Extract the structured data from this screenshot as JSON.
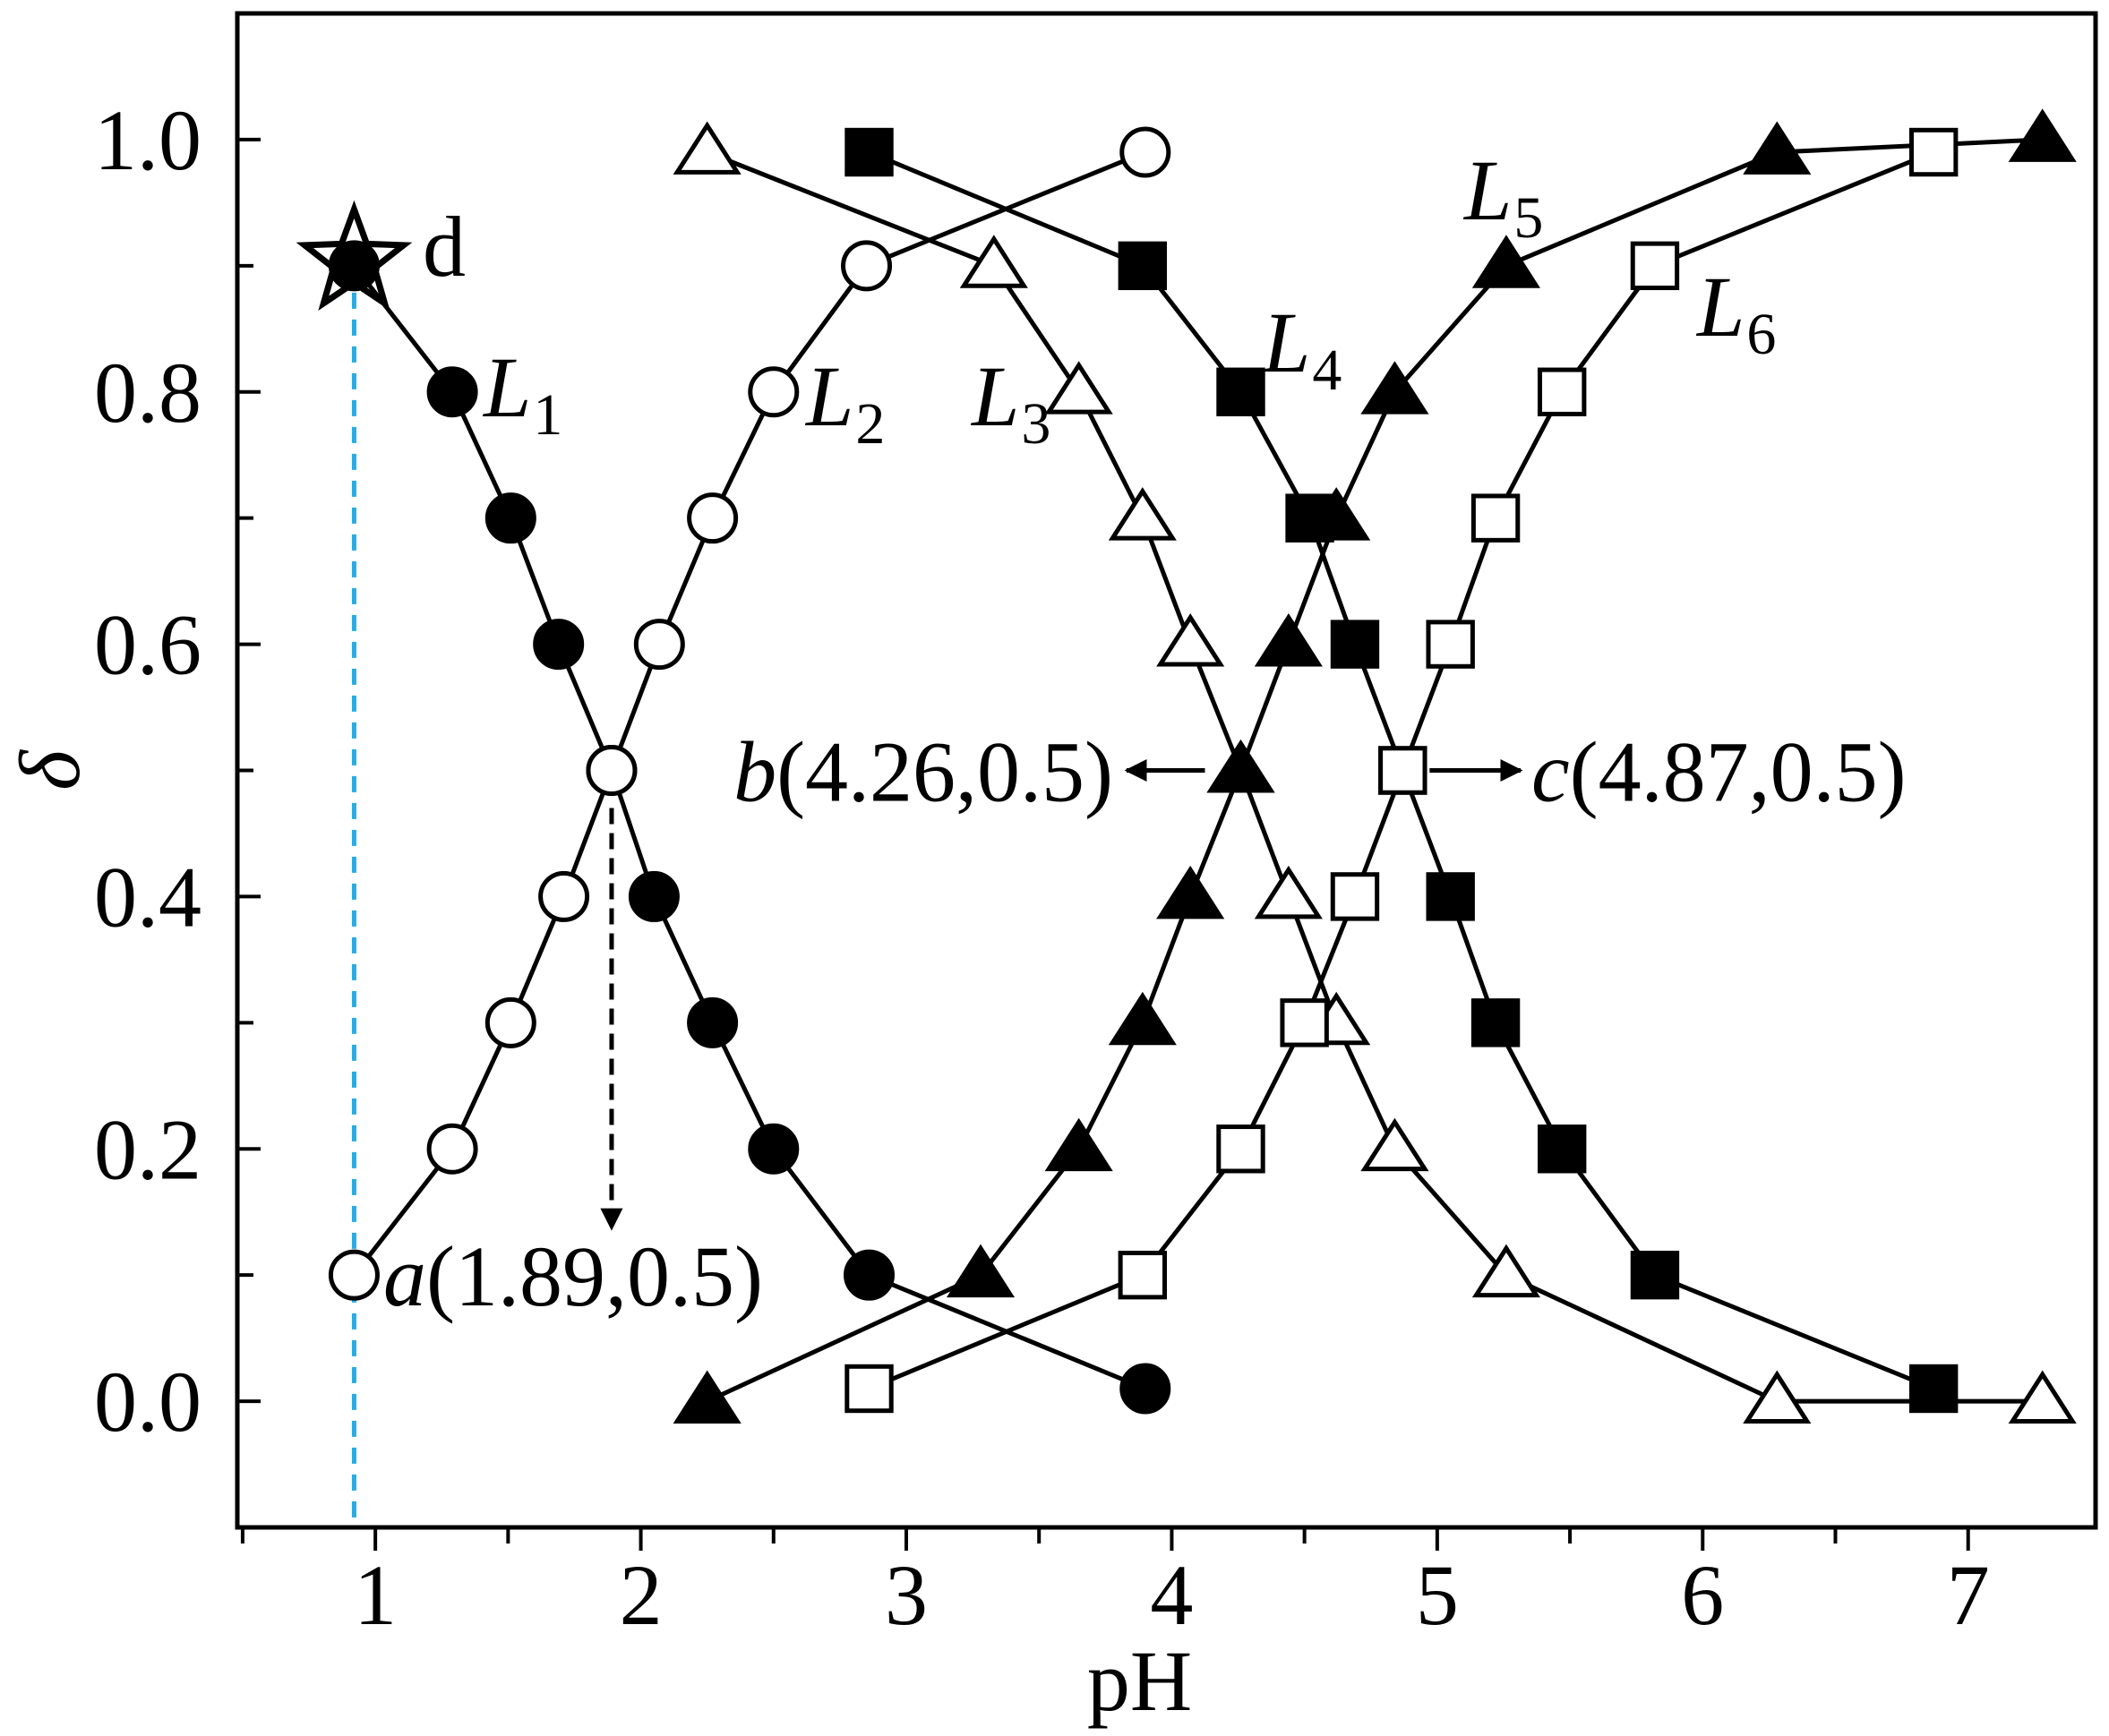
{
  "chart_data": {
    "type": "line",
    "xlabel": "pH",
    "ylabel": "δ",
    "xlim": [
      0.48,
      7.48
    ],
    "ylim": [
      -0.1,
      1.1
    ],
    "xticks": [
      1,
      2,
      3,
      4,
      5,
      6,
      7
    ],
    "yticks": [
      0.0,
      0.2,
      0.4,
      0.6,
      0.8,
      1.0
    ],
    "xtick_labels": [
      "1",
      "2",
      "3",
      "4",
      "5",
      "6",
      "7"
    ],
    "ytick_labels": [
      "0.0",
      "0.2",
      "0.4",
      "0.6",
      "0.8",
      "1.0"
    ],
    "grid": false,
    "series": [
      {
        "name": "L",
        "subscript": "1",
        "marker": "filled-circle",
        "x": [
          0.92,
          1.29,
          1.51,
          1.69,
          1.89,
          2.05,
          2.27,
          2.5,
          2.86,
          3.9
        ],
        "y": [
          0.9,
          0.8,
          0.7,
          0.6,
          0.5,
          0.4,
          0.3,
          0.2,
          0.1,
          0.01
        ]
      },
      {
        "name": "L",
        "subscript": "2",
        "marker": "open-circle",
        "x": [
          0.92,
          1.29,
          1.51,
          1.71,
          1.89,
          2.07,
          2.27,
          2.5,
          2.85,
          3.9
        ],
        "y": [
          0.1,
          0.2,
          0.3,
          0.4,
          0.5,
          0.6,
          0.7,
          0.8,
          0.9,
          0.99
        ]
      },
      {
        "name": "L",
        "subscript": "3",
        "marker": "open-triangle",
        "x": [
          2.25,
          3.33,
          3.65,
          3.89,
          4.07,
          4.26,
          4.44,
          4.62,
          4.84,
          5.26,
          6.28,
          7.28
        ],
        "y": [
          0.99,
          0.9,
          0.8,
          0.7,
          0.6,
          0.5,
          0.4,
          0.3,
          0.2,
          0.1,
          0.0,
          0.0
        ]
      },
      {
        "name": "L",
        "subscript": "4",
        "marker": "filled-square",
        "x": [
          2.86,
          3.89,
          4.26,
          4.52,
          4.69,
          4.87,
          5.05,
          5.22,
          5.47,
          5.82,
          6.87
        ],
        "y": [
          0.99,
          0.9,
          0.8,
          0.7,
          0.6,
          0.5,
          0.4,
          0.3,
          0.2,
          0.1,
          0.01
        ]
      },
      {
        "name": "L",
        "subscript": "5",
        "marker": "filled-triangle",
        "x": [
          2.25,
          3.28,
          3.65,
          3.89,
          4.07,
          4.26,
          4.44,
          4.62,
          4.84,
          5.26,
          6.28,
          7.28
        ],
        "y": [
          0.0,
          0.1,
          0.2,
          0.3,
          0.4,
          0.5,
          0.6,
          0.7,
          0.8,
          0.9,
          0.99,
          1.0
        ]
      },
      {
        "name": "L",
        "subscript": "6",
        "marker": "open-square",
        "x": [
          2.86,
          3.89,
          4.26,
          4.5,
          4.69,
          4.87,
          5.05,
          5.22,
          5.47,
          5.82,
          6.87
        ],
        "y": [
          0.01,
          0.1,
          0.2,
          0.3,
          0.4,
          0.5,
          0.6,
          0.7,
          0.8,
          0.9,
          0.99
        ]
      }
    ],
    "annotations": [
      {
        "id": "a",
        "letter": "a",
        "coords": "(1.89,0.5)",
        "x": 1.89,
        "y": 0.5
      },
      {
        "id": "b",
        "letter": "b",
        "coords": "(4.26,0.5)",
        "x": 4.26,
        "y": 0.5
      },
      {
        "id": "c",
        "letter": "c",
        "coords": "(4.87,0.5)",
        "x": 4.87,
        "y": 0.5
      },
      {
        "id": "d",
        "letter": "d",
        "x": 0.92,
        "y": 0.9
      }
    ],
    "reference_line": {
      "x": 0.92,
      "color": "#29abe2",
      "style": "dashed"
    }
  }
}
